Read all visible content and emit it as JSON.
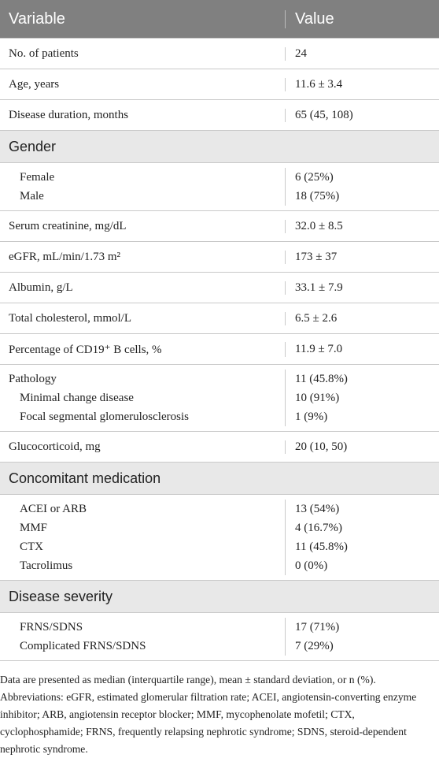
{
  "table": {
    "header": [
      "Variable",
      "Value"
    ],
    "rows": [
      {
        "cells": [
          "No. of patients",
          "24"
        ]
      },
      {
        "cells": [
          "Age, years",
          "11.6 ± 3.4"
        ]
      },
      {
        "cells": [
          "Disease duration, months",
          "65 (45, 108)"
        ]
      },
      {
        "section": "Gender"
      },
      {
        "items": [
          [
            "Female",
            "6 (25%)"
          ],
          [
            "Male",
            "18 (75%)"
          ]
        ]
      },
      {
        "cells": [
          "Serum creatinine, mg/dL",
          "32.0 ± 8.5"
        ]
      },
      {
        "cells": [
          "eGFR, mL/min/1.73 m²",
          "173 ± 37"
        ]
      },
      {
        "cells": [
          "Albumin, g/L",
          "33.1 ± 7.9"
        ]
      },
      {
        "cells": [
          "Total cholesterol, mmol/L",
          "6.5 ± 2.6"
        ]
      },
      {
        "cells": [
          "Percentage of CD19⁺ B cells, %",
          "11.9 ± 7.0"
        ]
      },
      {
        "title": [
          "Pathology",
          "11 (45.8%)"
        ],
        "items": [
          [
            "Minimal change disease",
            "10 (91%)"
          ],
          [
            "Focal segmental glomerulosclerosis",
            "1 (9%)"
          ]
        ]
      },
      {
        "cells": [
          "Glucocorticoid, mg",
          "20 (10, 50)"
        ]
      },
      {
        "section": "Concomitant medication"
      },
      {
        "items": [
          [
            "ACEI or ARB",
            "13 (54%)"
          ],
          [
            "MMF",
            "4 (16.7%)"
          ],
          [
            "CTX",
            "11 (45.8%)"
          ],
          [
            "Tacrolimus",
            "0 (0%)"
          ]
        ]
      },
      {
        "section": "Disease severity"
      },
      {
        "items": [
          [
            "FRNS/SDNS",
            "17 (71%)"
          ],
          [
            "Complicated FRNS/SDNS",
            "7 (29%)"
          ]
        ]
      }
    ],
    "footnote": "Data are presented as median (interquartile range), mean ± standard deviation, or n (%). Abbreviations: eGFR, estimated glomerular filtration rate; ACEI, angiotensin-converting enzyme inhibitor; ARB, angiotensin receptor blocker; MMF, mycophenolate mofetil; CTX, cyclophosphamide; FRNS, frequently relapsing nephrotic syndrome; SDNS, steroid-dependent nephrotic syndrome."
  }
}
